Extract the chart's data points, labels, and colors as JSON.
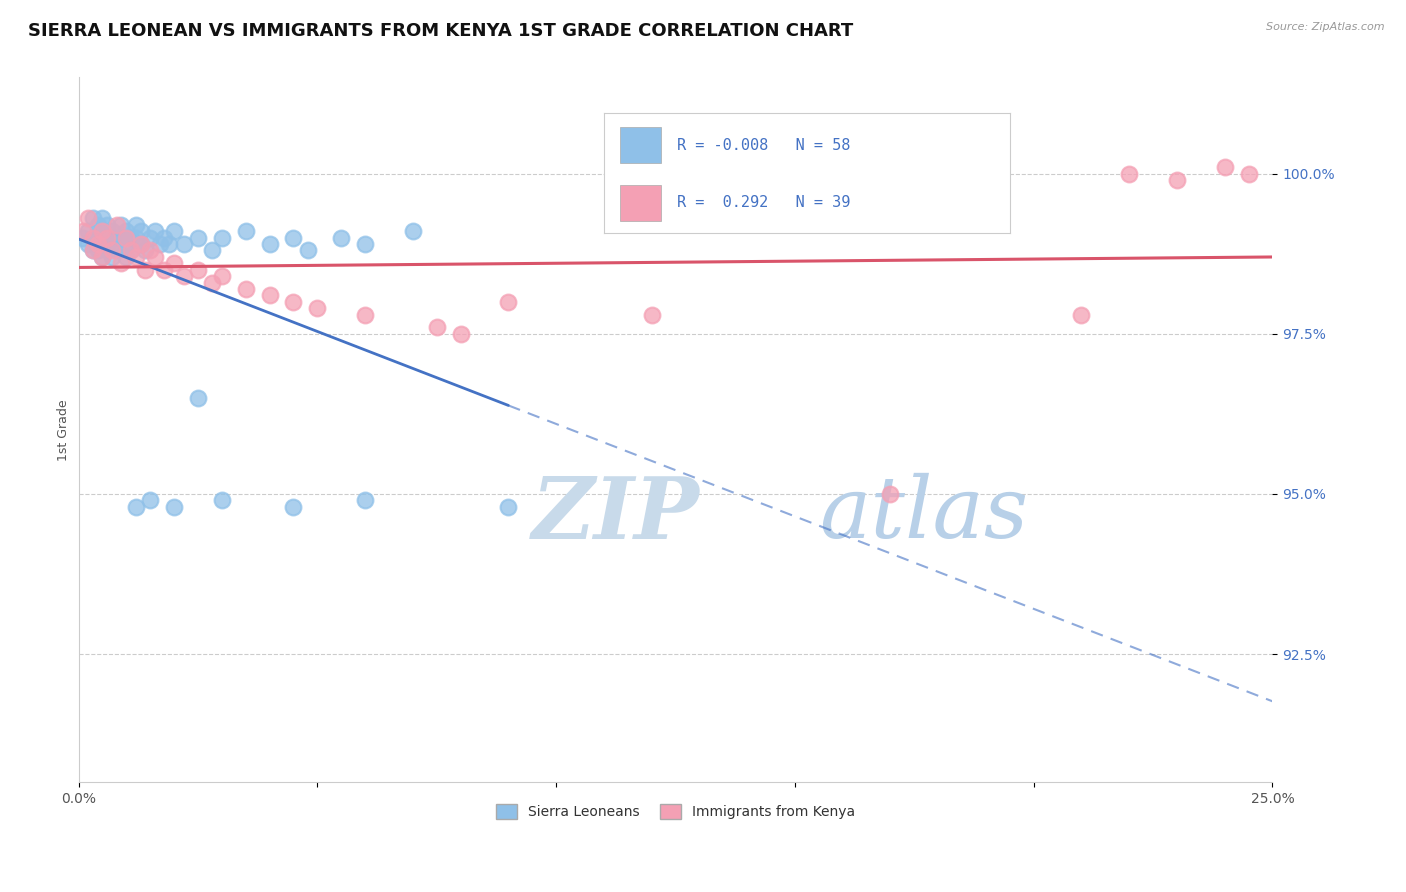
{
  "title": "SIERRA LEONEAN VS IMMIGRANTS FROM KENYA 1ST GRADE CORRELATION CHART",
  "source_text": "Source: ZipAtlas.com",
  "ylabel": "1st Grade",
  "x_min": 0.0,
  "x_max": 0.25,
  "y_min": 90.5,
  "y_max": 101.5,
  "x_ticks": [
    0.0,
    0.05,
    0.1,
    0.15,
    0.2,
    0.25
  ],
  "x_tick_labels": [
    "0.0%",
    "",
    "",
    "",
    "",
    "25.0%"
  ],
  "y_ticks": [
    92.5,
    95.0,
    97.5,
    100.0
  ],
  "y_tick_labels": [
    "92.5%",
    "95.0%",
    "97.5%",
    "100.0%"
  ],
  "legend_label1": "Sierra Leoneans",
  "legend_label2": "Immigrants from Kenya",
  "R1": "-0.008",
  "N1": "58",
  "R2": "0.292",
  "N2": "39",
  "color_blue": "#8FC0E8",
  "color_pink": "#F4A0B4",
  "color_blue_line": "#4472C4",
  "color_pink_line": "#D9546A",
  "watermark_color": "#D5E5F5",
  "background_color": "#FFFFFF",
  "title_fontsize": 13,
  "axis_label_fontsize": 9,
  "tick_fontsize": 10,
  "blue_x": [
    0.001,
    0.002,
    0.002,
    0.003,
    0.003,
    0.003,
    0.004,
    0.004,
    0.004,
    0.005,
    0.005,
    0.005,
    0.005,
    0.006,
    0.006,
    0.006,
    0.007,
    0.007,
    0.007,
    0.008,
    0.008,
    0.009,
    0.009,
    0.01,
    0.01,
    0.01,
    0.011,
    0.011,
    0.012,
    0.012,
    0.013,
    0.013,
    0.014,
    0.015,
    0.016,
    0.017,
    0.018,
    0.019,
    0.02,
    0.022,
    0.025,
    0.028,
    0.03,
    0.035,
    0.04,
    0.045,
    0.048,
    0.055,
    0.06,
    0.07,
    0.012,
    0.015,
    0.02,
    0.025,
    0.03,
    0.045,
    0.06,
    0.09
  ],
  "blue_y": [
    99.0,
    99.1,
    98.9,
    99.3,
    99.0,
    98.8,
    99.2,
    99.0,
    98.8,
    99.3,
    99.1,
    98.9,
    98.7,
    99.2,
    99.0,
    98.8,
    99.1,
    98.9,
    98.7,
    99.0,
    98.8,
    99.2,
    99.0,
    99.1,
    98.9,
    98.7,
    99.0,
    98.8,
    99.2,
    99.0,
    99.1,
    98.9,
    98.8,
    99.0,
    99.1,
    98.9,
    99.0,
    98.9,
    99.1,
    98.9,
    99.0,
    98.8,
    99.0,
    99.1,
    98.9,
    99.0,
    98.8,
    99.0,
    98.9,
    99.1,
    94.8,
    94.9,
    94.8,
    96.5,
    94.9,
    94.8,
    94.9,
    94.8
  ],
  "pink_x": [
    0.001,
    0.002,
    0.003,
    0.003,
    0.004,
    0.005,
    0.005,
    0.006,
    0.007,
    0.008,
    0.009,
    0.01,
    0.011,
    0.012,
    0.013,
    0.014,
    0.015,
    0.016,
    0.018,
    0.02,
    0.022,
    0.025,
    0.028,
    0.03,
    0.035,
    0.04,
    0.045,
    0.05,
    0.06,
    0.075,
    0.08,
    0.09,
    0.12,
    0.17,
    0.21,
    0.22,
    0.23,
    0.24,
    0.245
  ],
  "pink_y": [
    99.1,
    99.3,
    99.0,
    98.8,
    98.9,
    99.1,
    98.7,
    99.0,
    98.8,
    99.2,
    98.6,
    99.0,
    98.8,
    98.7,
    98.9,
    98.5,
    98.8,
    98.7,
    98.5,
    98.6,
    98.4,
    98.5,
    98.3,
    98.4,
    98.2,
    98.1,
    98.0,
    97.9,
    97.8,
    97.6,
    97.5,
    98.0,
    97.8,
    95.0,
    97.8,
    100.0,
    99.9,
    100.1,
    100.0
  ]
}
